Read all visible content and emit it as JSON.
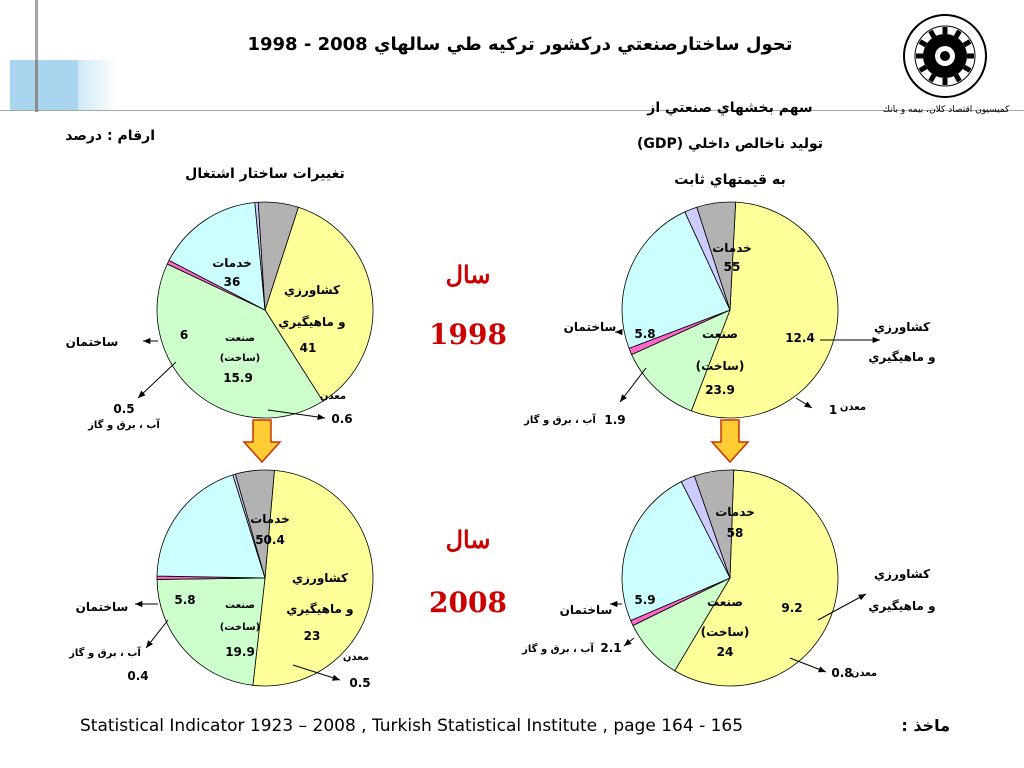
{
  "header": {
    "title": "تحول ساختارصنعتي دركشور تركيه طي سالهاي 2008 - 1998"
  },
  "units_label": "ارقام : درصد",
  "organization": "كميسيون اقتصاد كلان، بيمه و بانك",
  "years": {
    "word": "سال",
    "first": "1998",
    "second": "2008"
  },
  "footer": {
    "source_label": "ماخذ :",
    "source_text": "Statistical Indicator 1923 – 2008 , Turkish Statistical Institute , page 164 - 165"
  },
  "labels": {
    "services": "خدمات",
    "agri_1": "كشاورزي",
    "agri_2": "و ماهيگيري",
    "industry_1": "صنعت",
    "industry_2": "(ساخت)",
    "construction": "ساختمان",
    "utilities": "آب ، برق و گاز",
    "mining": "معدن"
  },
  "colors": {
    "services": "#ffff99",
    "agriculture": "#ccffcc",
    "industry": "#ccffff",
    "construction": "#b2b2b2",
    "utilities": "#ccccff",
    "mining": "#ff66cc",
    "year": "#cc0000",
    "arrow": "#ffcc33"
  },
  "chart_data": [
    {
      "type": "pie",
      "title": "تغييرات ساختار اشتغال",
      "year": "1998",
      "slices": [
        {
          "key": "services",
          "value": 36
        },
        {
          "key": "agriculture",
          "value": 41
        },
        {
          "key": "mining",
          "value": 0.6
        },
        {
          "key": "industry",
          "value": 15.9
        },
        {
          "key": "utilities",
          "value": 0.5
        },
        {
          "key": "construction",
          "value": 6
        }
      ]
    },
    {
      "type": "pie",
      "title": "تغييرات ساختار اشتغال",
      "year": "2008",
      "slices": [
        {
          "key": "services",
          "value": 50.4
        },
        {
          "key": "agriculture",
          "value": 23
        },
        {
          "key": "mining",
          "value": 0.5
        },
        {
          "key": "industry",
          "value": 19.9
        },
        {
          "key": "utilities",
          "value": 0.4
        },
        {
          "key": "construction",
          "value": 5.8
        }
      ]
    },
    {
      "type": "pie",
      "title_lines": [
        "سهم بخشهاي صنعتي از",
        "توليد ناخالص داخلي (GDP)",
        "به قيمتهاي ثابت"
      ],
      "year": "1998",
      "slices": [
        {
          "key": "services",
          "value": 55
        },
        {
          "key": "agriculture",
          "value": 12.4
        },
        {
          "key": "mining",
          "value": 1
        },
        {
          "key": "industry",
          "value": 23.9
        },
        {
          "key": "utilities",
          "value": 1.9
        },
        {
          "key": "construction",
          "value": 5.8
        }
      ]
    },
    {
      "type": "pie",
      "year": "2008",
      "slices": [
        {
          "key": "services",
          "value": 58
        },
        {
          "key": "agriculture",
          "value": 9.2
        },
        {
          "key": "mining",
          "value": 0.8
        },
        {
          "key": "industry",
          "value": 24
        },
        {
          "key": "utilities",
          "value": 2.1
        },
        {
          "key": "construction",
          "value": 5.9
        }
      ]
    }
  ]
}
